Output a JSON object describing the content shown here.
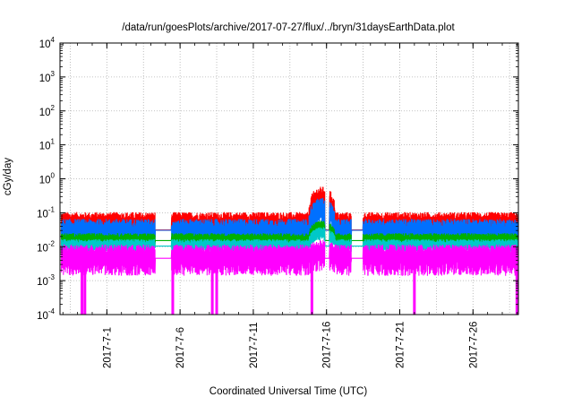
{
  "chart_data": {
    "type": "line",
    "title": "/data/run/goesPlots/archive/2017-07-27/flux/../bryn/31daysEarthData.plot",
    "xlabel": "Coordinated Universal Time (UTC)",
    "ylabel": "cGy/day",
    "y_scale": "log",
    "ylim": [
      0.0001,
      10000
    ],
    "xlim_days": [
      -3.2,
      28.1
    ],
    "grid": true,
    "grid_style": "dotted",
    "x_tick_labels": [
      "2017-7-1",
      "2017-7-6",
      "2017-7-11",
      "2017-7-16",
      "2017-7-21",
      "2017-7-26"
    ],
    "x_ticks_day_offset": [
      0,
      5,
      10,
      15,
      20,
      25
    ],
    "y_ticks": [
      {
        "value": 0.0001,
        "base": "10",
        "exp": "-4"
      },
      {
        "value": 0.001,
        "base": "10",
        "exp": "-3"
      },
      {
        "value": 0.01,
        "base": "10",
        "exp": "-2"
      },
      {
        "value": 0.1,
        "base": "10",
        "exp": "-1"
      },
      {
        "value": 1,
        "base": "10",
        "exp": "0"
      },
      {
        "value": 10,
        "base": "10",
        "exp": "1"
      },
      {
        "value": 100,
        "base": "10",
        "exp": "2"
      },
      {
        "value": 1000,
        "base": "10",
        "exp": "3"
      },
      {
        "value": 10000,
        "base": "10",
        "exp": "4"
      }
    ],
    "data_gaps_days": [
      [
        3.3,
        4.4
      ],
      [
        14.9,
        15.2
      ],
      [
        16.7,
        17.5
      ]
    ],
    "series": [
      {
        "color": "#ff0000",
        "typical": 0.062,
        "storm_peak": 0.35,
        "noise": 0.38
      },
      {
        "color": "#0070ff",
        "typical": 0.038,
        "storm_peak": 0.16,
        "noise": 0.4
      },
      {
        "color": "#00b000",
        "typical": 0.019,
        "storm_peak": 0.045,
        "noise": 0.2
      },
      {
        "color": "#00c8c8",
        "typical": 0.013,
        "storm_peak": 0.03,
        "noise": 0.18
      },
      {
        "color": "#ff00ff",
        "typical": 0.0065,
        "storm_peak": 0.009,
        "noise": 0.42
      }
    ],
    "storm_window_days": [
      13.8,
      15.6
    ],
    "magenta_dropouts_days": [
      -1.7,
      -1.5,
      4.5,
      7.2,
      7.5,
      14.0,
      21.0,
      28.0
    ]
  }
}
